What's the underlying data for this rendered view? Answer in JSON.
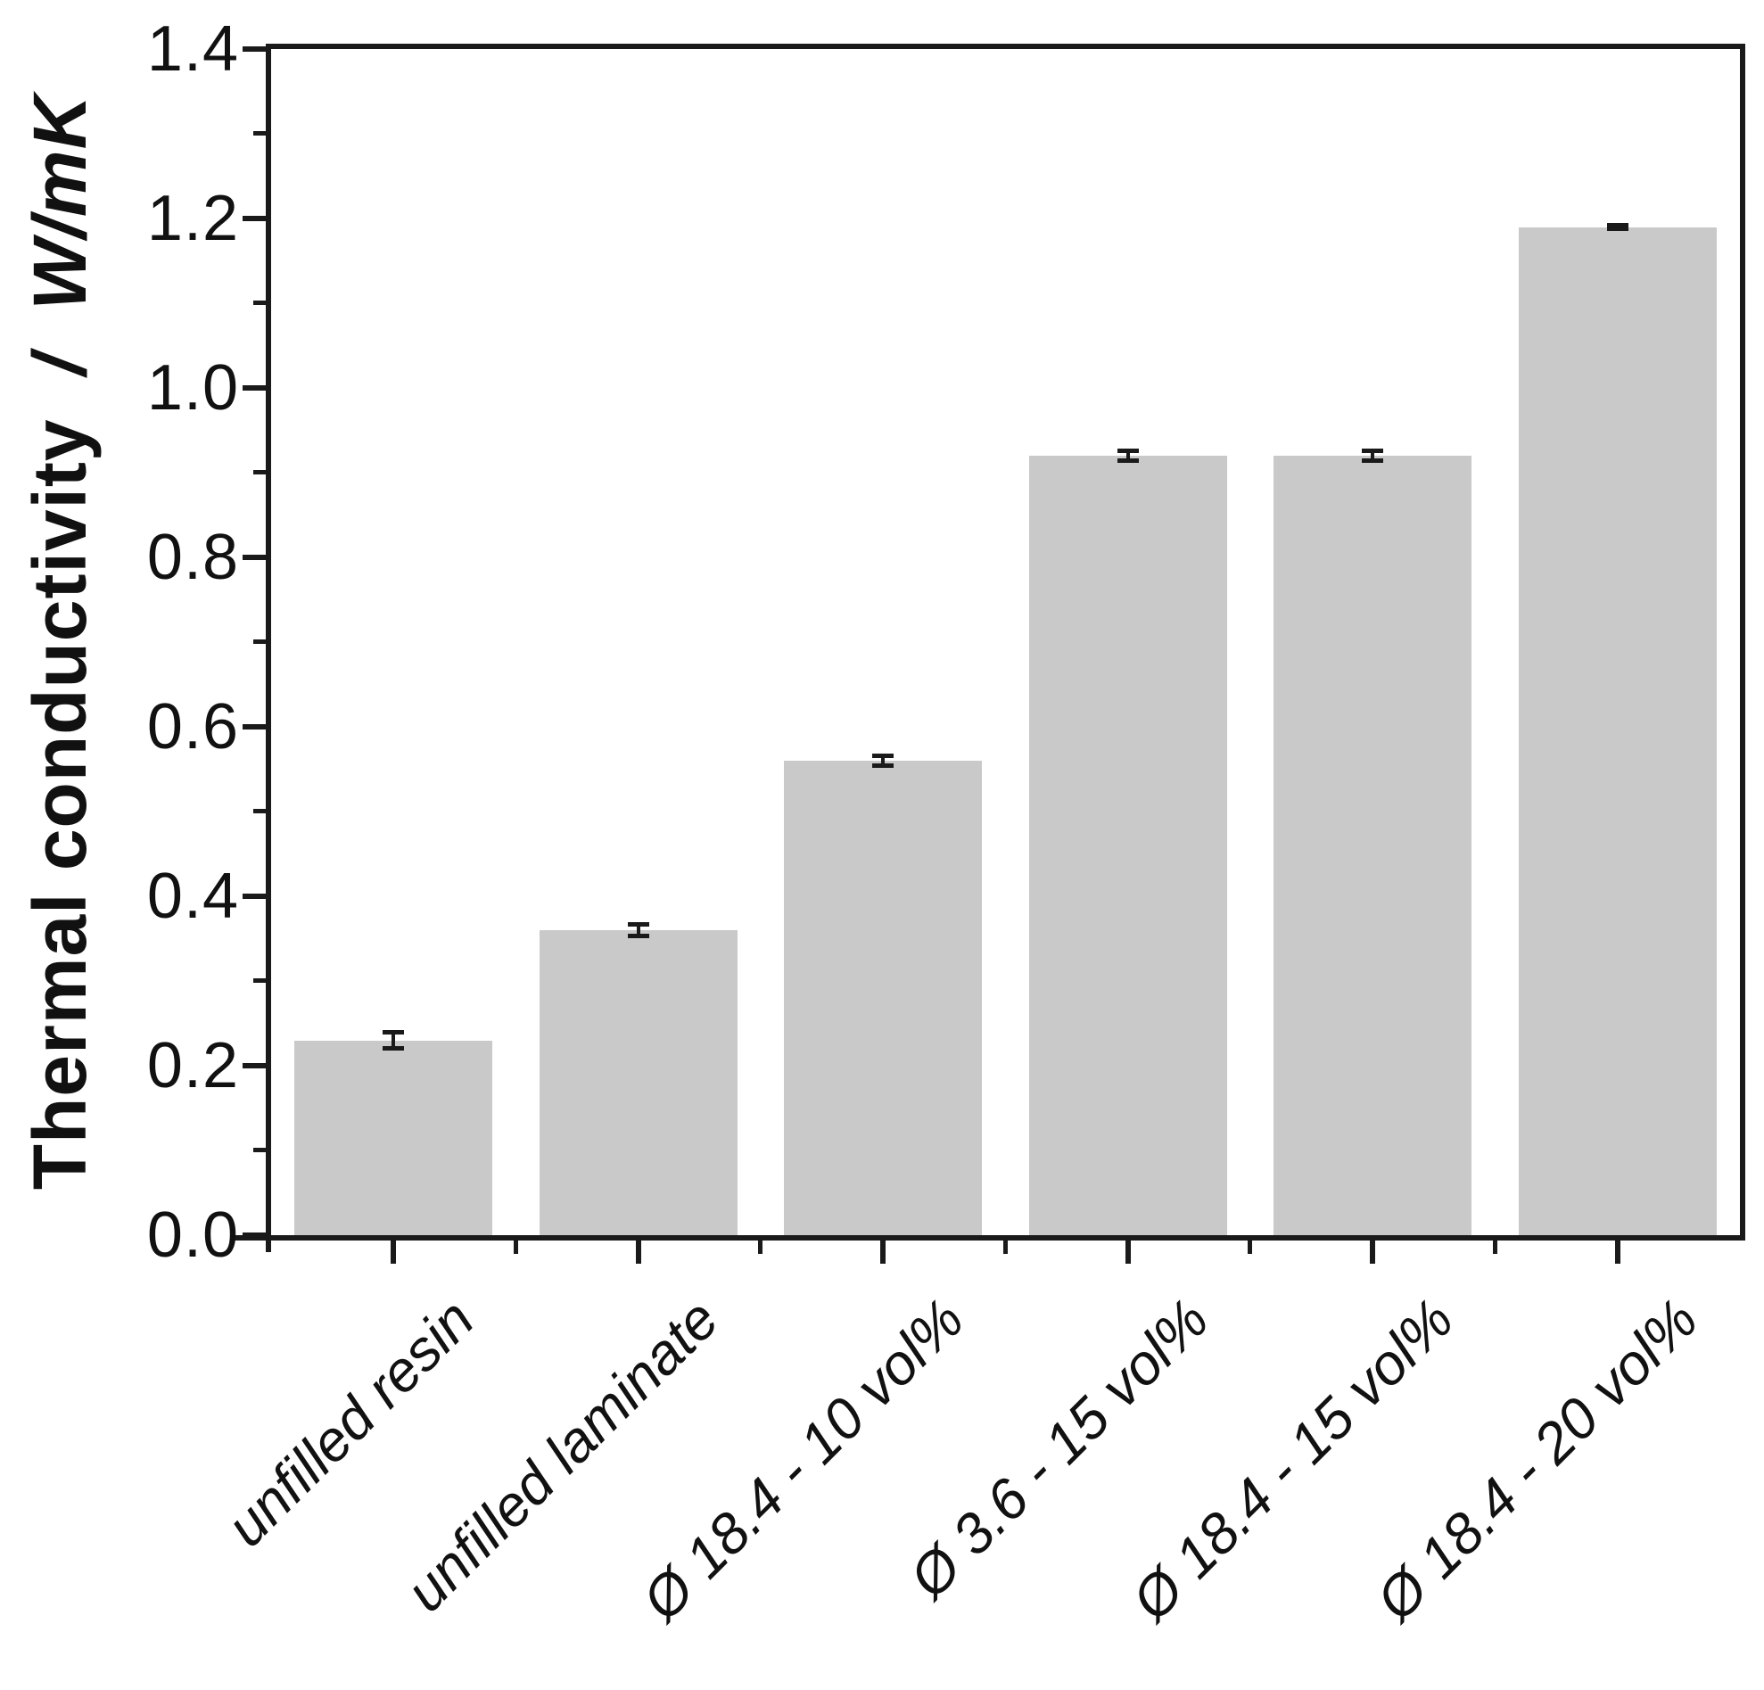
{
  "chart_data": {
    "type": "bar",
    "title": "",
    "ylabel": "Thermal conductivity",
    "ylabel_sep": "  /  ",
    "ylabel_units": "W/mK",
    "xlabel": "",
    "categories": [
      "unfilled resin",
      "unfilled laminate",
      "Ø 18.4 - 10 vol%",
      "Ø 3.6 - 15 vol%",
      "Ø 18.4 - 15 vol%",
      "Ø 18.4 - 20 vol%"
    ],
    "values": [
      0.23,
      0.36,
      0.56,
      0.92,
      0.92,
      1.19
    ],
    "errors": [
      0.01,
      0.007,
      0.006,
      0.006,
      0.006,
      0.003
    ],
    "ylim": [
      0.0,
      1.4
    ],
    "ytick_step": 0.2,
    "yticks": [
      "0.0",
      "0.2",
      "0.4",
      "0.6",
      "0.8",
      "1.0",
      "1.2",
      "1.4"
    ],
    "minor_tick_step": 0.1,
    "grid": false,
    "legend": "none",
    "bar_color": "#c9c9c9",
    "axis_color": "#1a1a1a",
    "error_bar_color": "#1a1a1a",
    "background_color": "#ffffff"
  }
}
